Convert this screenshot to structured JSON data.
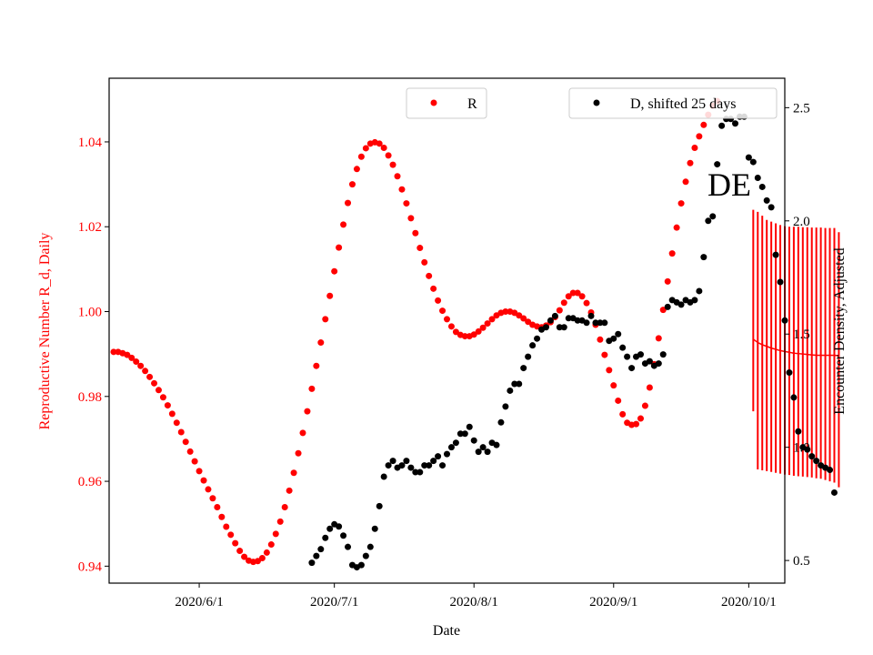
{
  "chart_data": {
    "type": "scatter",
    "xlabel": "Date",
    "ylabel_left": "Reproductive Number R_d, Daily",
    "ylabel_right": "Encounter Density, Adjusted",
    "x_ticks": [
      "2020/6/1",
      "2020/7/1",
      "2020/8/1",
      "2020/9/1",
      "2020/10/1"
    ],
    "y_left_ticks": [
      "0.94",
      "0.96",
      "0.98",
      "1.00",
      "1.02",
      "1.04"
    ],
    "y_right_ticks": [
      "0.5",
      "1.0",
      "1.5",
      "2.0",
      "2.5"
    ],
    "xlim": [
      "2020-05-12",
      "2020-10-09"
    ],
    "ylim_left": [
      0.936,
      1.055
    ],
    "ylim_right": [
      0.4,
      2.63
    ],
    "annotation": "DE",
    "colors": {
      "r_series": "#ff0000",
      "d_series": "#000000",
      "left_axis_text": "#ff0000",
      "right_axis_text": "#000000"
    },
    "r_series": {
      "name": "R",
      "legend_position": "top-center",
      "points": [
        [
          "2020-05-13",
          0.9905
        ],
        [
          "2020-05-14",
          0.9905
        ],
        [
          "2020-05-15",
          0.9902
        ],
        [
          "2020-05-16",
          0.9898
        ],
        [
          "2020-05-17",
          0.9891
        ],
        [
          "2020-05-18",
          0.9882
        ],
        [
          "2020-05-19",
          0.9872
        ],
        [
          "2020-05-20",
          0.986
        ],
        [
          "2020-05-21",
          0.9846
        ],
        [
          "2020-05-22",
          0.9831
        ],
        [
          "2020-05-23",
          0.9815
        ],
        [
          "2020-05-24",
          0.9798
        ],
        [
          "2020-05-25",
          0.9779
        ],
        [
          "2020-05-26",
          0.9759
        ],
        [
          "2020-05-27",
          0.9738
        ],
        [
          "2020-05-28",
          0.9716
        ],
        [
          "2020-05-29",
          0.9693
        ],
        [
          "2020-05-30",
          0.967
        ],
        [
          "2020-05-31",
          0.9647
        ],
        [
          "2020-06-01",
          0.9624
        ],
        [
          "2020-06-02",
          0.9602
        ],
        [
          "2020-06-03",
          0.9581
        ],
        [
          "2020-06-04",
          0.956
        ],
        [
          "2020-06-05",
          0.9539
        ],
        [
          "2020-06-06",
          0.9516
        ],
        [
          "2020-06-07",
          0.9493
        ],
        [
          "2020-06-08",
          0.9474
        ],
        [
          "2020-06-09",
          0.9454
        ],
        [
          "2020-06-10",
          0.9436
        ],
        [
          "2020-06-11",
          0.9422
        ],
        [
          "2020-06-12",
          0.9413
        ],
        [
          "2020-06-13",
          0.941
        ],
        [
          "2020-06-14",
          0.9412
        ],
        [
          "2020-06-15",
          0.9419
        ],
        [
          "2020-06-16",
          0.9432
        ],
        [
          "2020-06-17",
          0.9451
        ],
        [
          "2020-06-18",
          0.9476
        ],
        [
          "2020-06-19",
          0.9505
        ],
        [
          "2020-06-20",
          0.9539
        ],
        [
          "2020-06-21",
          0.9578
        ],
        [
          "2020-06-22",
          0.962
        ],
        [
          "2020-06-23",
          0.9666
        ],
        [
          "2020-06-24",
          0.9714
        ],
        [
          "2020-06-25",
          0.9765
        ],
        [
          "2020-06-26",
          0.9818
        ],
        [
          "2020-06-27",
          0.9872
        ],
        [
          "2020-06-28",
          0.9927
        ],
        [
          "2020-06-29",
          0.9982
        ],
        [
          "2020-06-30",
          1.0037
        ],
        [
          "2020-07-01",
          1.0095
        ],
        [
          "2020-07-02",
          1.0151
        ],
        [
          "2020-07-03",
          1.0205
        ],
        [
          "2020-07-04",
          1.0256
        ],
        [
          "2020-07-05",
          1.03
        ],
        [
          "2020-07-06",
          1.0336
        ],
        [
          "2020-07-07",
          1.0365
        ],
        [
          "2020-07-08",
          1.0385
        ],
        [
          "2020-07-09",
          1.0396
        ],
        [
          "2020-07-10",
          1.0399
        ],
        [
          "2020-07-11",
          1.0396
        ],
        [
          "2020-07-12",
          1.0386
        ],
        [
          "2020-07-13",
          1.0368
        ],
        [
          "2020-07-14",
          1.0346
        ],
        [
          "2020-07-15",
          1.0319
        ],
        [
          "2020-07-16",
          1.0288
        ],
        [
          "2020-07-17",
          1.0255
        ],
        [
          "2020-07-18",
          1.022
        ],
        [
          "2020-07-19",
          1.0185
        ],
        [
          "2020-07-20",
          1.015
        ],
        [
          "2020-07-21",
          1.0116
        ],
        [
          "2020-07-22",
          1.0084
        ],
        [
          "2020-07-23",
          1.0054
        ],
        [
          "2020-07-24",
          1.0026
        ],
        [
          "2020-07-25",
          1.0002
        ],
        [
          "2020-07-26",
          0.9982
        ],
        [
          "2020-07-27",
          0.9965
        ],
        [
          "2020-07-28",
          0.9952
        ],
        [
          "2020-07-29",
          0.9945
        ],
        [
          "2020-07-30",
          0.9942
        ],
        [
          "2020-07-31",
          0.9942
        ],
        [
          "2020-08-01",
          0.9946
        ],
        [
          "2020-08-02",
          0.9953
        ],
        [
          "2020-08-03",
          0.9962
        ],
        [
          "2020-08-04",
          0.9972
        ],
        [
          "2020-08-05",
          0.9982
        ],
        [
          "2020-08-06",
          0.9991
        ],
        [
          "2020-08-07",
          0.9997
        ],
        [
          "2020-08-08",
          1.0
        ],
        [
          "2020-08-09",
          1.0
        ],
        [
          "2020-08-10",
          0.9997
        ],
        [
          "2020-08-11",
          0.9991
        ],
        [
          "2020-08-12",
          0.9984
        ],
        [
          "2020-08-13",
          0.9976
        ],
        [
          "2020-08-14",
          0.9969
        ],
        [
          "2020-08-15",
          0.9965
        ],
        [
          "2020-08-16",
          0.9963
        ],
        [
          "2020-08-17",
          0.9967
        ],
        [
          "2020-08-18",
          0.9975
        ],
        [
          "2020-08-19",
          0.9987
        ],
        [
          "2020-08-20",
          1.0003
        ],
        [
          "2020-08-21",
          1.0021
        ],
        [
          "2020-08-22",
          1.0036
        ],
        [
          "2020-08-23",
          1.0044
        ],
        [
          "2020-08-24",
          1.0044
        ],
        [
          "2020-08-25",
          1.0036
        ],
        [
          "2020-08-26",
          1.002
        ],
        [
          "2020-08-27",
          0.9998
        ],
        [
          "2020-08-28",
          0.9969
        ],
        [
          "2020-08-29",
          0.9934
        ],
        [
          "2020-08-30",
          0.9898
        ],
        [
          "2020-08-31",
          0.9862
        ],
        [
          "2020-09-01",
          0.9826
        ],
        [
          "2020-09-02",
          0.979
        ],
        [
          "2020-09-03",
          0.9758
        ],
        [
          "2020-09-04",
          0.9738
        ],
        [
          "2020-09-05",
          0.9733
        ],
        [
          "2020-09-06",
          0.9735
        ],
        [
          "2020-09-07",
          0.9748
        ],
        [
          "2020-09-08",
          0.9778
        ],
        [
          "2020-09-09",
          0.9821
        ],
        [
          "2020-09-10",
          0.9876
        ],
        [
          "2020-09-11",
          0.9937
        ],
        [
          "2020-09-12",
          1.0004
        ],
        [
          "2020-09-13",
          1.0071
        ],
        [
          "2020-09-14",
          1.0137
        ],
        [
          "2020-09-15",
          1.0198
        ],
        [
          "2020-09-16",
          1.0255
        ],
        [
          "2020-09-17",
          1.0306
        ],
        [
          "2020-09-18",
          1.035
        ],
        [
          "2020-09-19",
          1.0386
        ],
        [
          "2020-09-20",
          1.0413
        ],
        [
          "2020-09-21",
          1.044
        ],
        [
          "2020-09-22",
          1.0464
        ],
        [
          "2020-09-23",
          1.0485
        ],
        [
          "2020-09-24",
          1.0496
        ]
      ]
    },
    "d_series": {
      "name": "D, shifted 25 days",
      "legend_position": "top-right",
      "points": [
        [
          "2020-06-26",
          0.49
        ],
        [
          "2020-06-27",
          0.52
        ],
        [
          "2020-06-28",
          0.55
        ],
        [
          "2020-06-29",
          0.6
        ],
        [
          "2020-06-30",
          0.64
        ],
        [
          "2020-07-01",
          0.66
        ],
        [
          "2020-07-02",
          0.65
        ],
        [
          "2020-07-03",
          0.61
        ],
        [
          "2020-07-04",
          0.56
        ],
        [
          "2020-07-05",
          0.48
        ],
        [
          "2020-07-06",
          0.47
        ],
        [
          "2020-07-07",
          0.48
        ],
        [
          "2020-07-08",
          0.52
        ],
        [
          "2020-07-09",
          0.56
        ],
        [
          "2020-07-10",
          0.64
        ],
        [
          "2020-07-11",
          0.74
        ],
        [
          "2020-07-12",
          0.87
        ],
        [
          "2020-07-13",
          0.92
        ],
        [
          "2020-07-14",
          0.94
        ],
        [
          "2020-07-15",
          0.91
        ],
        [
          "2020-07-16",
          0.92
        ],
        [
          "2020-07-17",
          0.94
        ],
        [
          "2020-07-18",
          0.91
        ],
        [
          "2020-07-19",
          0.89
        ],
        [
          "2020-07-20",
          0.89
        ],
        [
          "2020-07-21",
          0.92
        ],
        [
          "2020-07-22",
          0.92
        ],
        [
          "2020-07-23",
          0.94
        ],
        [
          "2020-07-24",
          0.96
        ],
        [
          "2020-07-25",
          0.92
        ],
        [
          "2020-07-26",
          0.97
        ],
        [
          "2020-07-27",
          1.0
        ],
        [
          "2020-07-28",
          1.02
        ],
        [
          "2020-07-29",
          1.06
        ],
        [
          "2020-07-30",
          1.06
        ],
        [
          "2020-07-31",
          1.09
        ],
        [
          "2020-08-01",
          1.03
        ],
        [
          "2020-08-02",
          0.98
        ],
        [
          "2020-08-03",
          1.0
        ],
        [
          "2020-08-04",
          0.98
        ],
        [
          "2020-08-05",
          1.02
        ],
        [
          "2020-08-06",
          1.01
        ],
        [
          "2020-08-07",
          1.11
        ],
        [
          "2020-08-08",
          1.18
        ],
        [
          "2020-08-09",
          1.25
        ],
        [
          "2020-08-10",
          1.28
        ],
        [
          "2020-08-11",
          1.28
        ],
        [
          "2020-08-12",
          1.35
        ],
        [
          "2020-08-13",
          1.4
        ],
        [
          "2020-08-14",
          1.45
        ],
        [
          "2020-08-15",
          1.48
        ],
        [
          "2020-08-16",
          1.52
        ],
        [
          "2020-08-17",
          1.53
        ],
        [
          "2020-08-18",
          1.56
        ],
        [
          "2020-08-19",
          1.58
        ],
        [
          "2020-08-20",
          1.53
        ],
        [
          "2020-08-21",
          1.53
        ],
        [
          "2020-08-22",
          1.57
        ],
        [
          "2020-08-23",
          1.57
        ],
        [
          "2020-08-24",
          1.56
        ],
        [
          "2020-08-25",
          1.56
        ],
        [
          "2020-08-26",
          1.55
        ],
        [
          "2020-08-27",
          1.58
        ],
        [
          "2020-08-28",
          1.55
        ],
        [
          "2020-08-29",
          1.55
        ],
        [
          "2020-08-30",
          1.55
        ],
        [
          "2020-08-31",
          1.47
        ],
        [
          "2020-09-01",
          1.48
        ],
        [
          "2020-09-02",
          1.5
        ],
        [
          "2020-09-03",
          1.44
        ],
        [
          "2020-09-04",
          1.4
        ],
        [
          "2020-09-05",
          1.35
        ],
        [
          "2020-09-06",
          1.4
        ],
        [
          "2020-09-07",
          1.41
        ],
        [
          "2020-09-08",
          1.37
        ],
        [
          "2020-09-09",
          1.38
        ],
        [
          "2020-09-10",
          1.36
        ],
        [
          "2020-09-11",
          1.37
        ],
        [
          "2020-09-12",
          1.41
        ],
        [
          "2020-09-13",
          1.62
        ],
        [
          "2020-09-14",
          1.65
        ],
        [
          "2020-09-15",
          1.64
        ],
        [
          "2020-09-16",
          1.63
        ],
        [
          "2020-09-17",
          1.65
        ],
        [
          "2020-09-18",
          1.64
        ],
        [
          "2020-09-19",
          1.65
        ],
        [
          "2020-09-20",
          1.69
        ],
        [
          "2020-09-21",
          1.84
        ],
        [
          "2020-09-22",
          2.0
        ],
        [
          "2020-09-23",
          2.02
        ],
        [
          "2020-09-24",
          2.25
        ],
        [
          "2020-09-25",
          2.42
        ],
        [
          "2020-09-26",
          2.45
        ],
        [
          "2020-09-27",
          2.45
        ],
        [
          "2020-09-28",
          2.43
        ],
        [
          "2020-09-29",
          2.46
        ],
        [
          "2020-09-30",
          2.46
        ],
        [
          "2020-10-01",
          2.28
        ],
        [
          "2020-10-02",
          2.26
        ],
        [
          "2020-10-03",
          2.19
        ],
        [
          "2020-10-04",
          2.15
        ],
        [
          "2020-10-05",
          2.09
        ],
        [
          "2020-10-06",
          2.06
        ],
        [
          "2020-10-07",
          1.85
        ],
        [
          "2020-10-08",
          1.73
        ],
        [
          "2020-10-09",
          1.56
        ],
        [
          "2020-10-10",
          1.33
        ],
        [
          "2020-10-11",
          1.22
        ],
        [
          "2020-10-12",
          1.07
        ],
        [
          "2020-10-13",
          1.0
        ],
        [
          "2020-10-14",
          0.99
        ],
        [
          "2020-10-15",
          0.96
        ],
        [
          "2020-10-16",
          0.94
        ],
        [
          "2020-10-17",
          0.92
        ],
        [
          "2020-10-18",
          0.91
        ],
        [
          "2020-10-19",
          0.9
        ],
        [
          "2020-10-20",
          0.8
        ]
      ]
    },
    "r_forecast": {
      "points": [
        [
          "2020-10-02",
          0.9935,
          0.9765,
          1.024
        ],
        [
          "2020-10-03",
          0.9927,
          0.9628,
          1.0235
        ],
        [
          "2020-10-04",
          0.9922,
          0.9626,
          1.0226
        ],
        [
          "2020-10-05",
          0.9918,
          0.9624,
          1.0216
        ],
        [
          "2020-10-06",
          0.9914,
          0.9622,
          1.0212
        ],
        [
          "2020-10-07",
          0.9911,
          0.962,
          1.0208
        ],
        [
          "2020-10-08",
          0.9908,
          0.9618,
          1.0204
        ],
        [
          "2020-10-09",
          0.9906,
          0.9616,
          1.0201
        ],
        [
          "2020-10-10",
          0.9904,
          0.9615,
          1.02
        ],
        [
          "2020-10-11",
          0.9902,
          0.9613,
          1.02
        ],
        [
          "2020-10-12",
          0.9901,
          0.9612,
          1.02
        ],
        [
          "2020-10-13",
          0.99,
          0.9611,
          1.0199
        ],
        [
          "2020-10-14",
          0.9899,
          0.961,
          1.0199
        ],
        [
          "2020-10-15",
          0.9898,
          0.9609,
          1.0198
        ],
        [
          "2020-10-16",
          0.9897,
          0.9607,
          1.0198
        ],
        [
          "2020-10-17",
          0.9897,
          0.9606,
          1.0198
        ],
        [
          "2020-10-18",
          0.9897,
          0.9603,
          1.0197
        ],
        [
          "2020-10-19",
          0.9897,
          0.96,
          1.0197
        ],
        [
          "2020-10-20",
          0.9897,
          0.9597,
          1.0197
        ],
        [
          "2020-10-21",
          0.9896,
          0.9586,
          1.0187
        ]
      ]
    }
  }
}
